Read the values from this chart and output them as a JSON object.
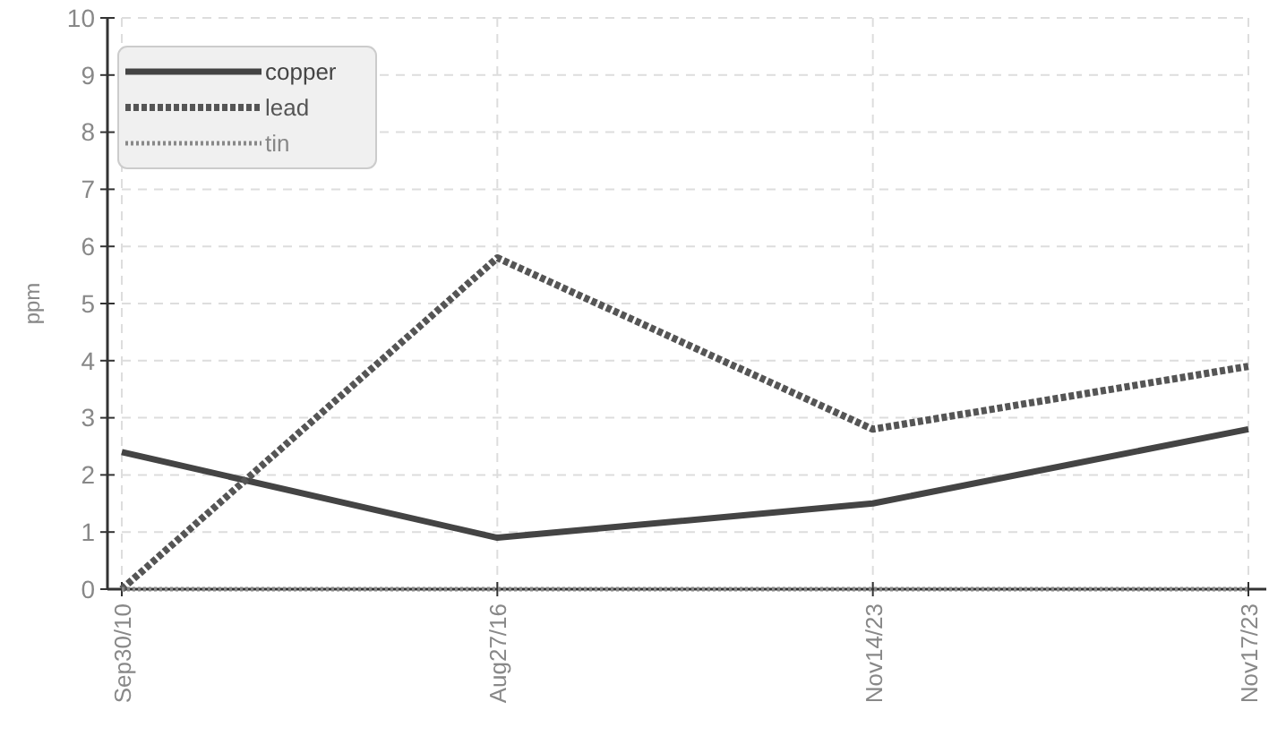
{
  "chart_data": {
    "type": "line",
    "ylabel": "ppm",
    "categories": [
      "Sep30/10",
      "Aug27/16",
      "Nov14/23",
      "Nov17/23"
    ],
    "series": [
      {
        "name": "copper",
        "color": "#444444",
        "line_style": "solid",
        "values": [
          2.4,
          0.9,
          1.5,
          2.8
        ]
      },
      {
        "name": "lead",
        "color": "#555555",
        "line_style": "dashed",
        "values": [
          0,
          5.8,
          2.8,
          3.9
        ]
      },
      {
        "name": "tin",
        "color": "#888888",
        "line_style": "dotted",
        "values": [
          0,
          0,
          0,
          0
        ]
      }
    ],
    "ylim": [
      0,
      10
    ],
    "yticks": [
      0,
      1,
      2,
      3,
      4,
      5,
      6,
      7,
      8,
      9,
      10
    ],
    "grid": true,
    "legend": "top left",
    "marker": "none"
  }
}
